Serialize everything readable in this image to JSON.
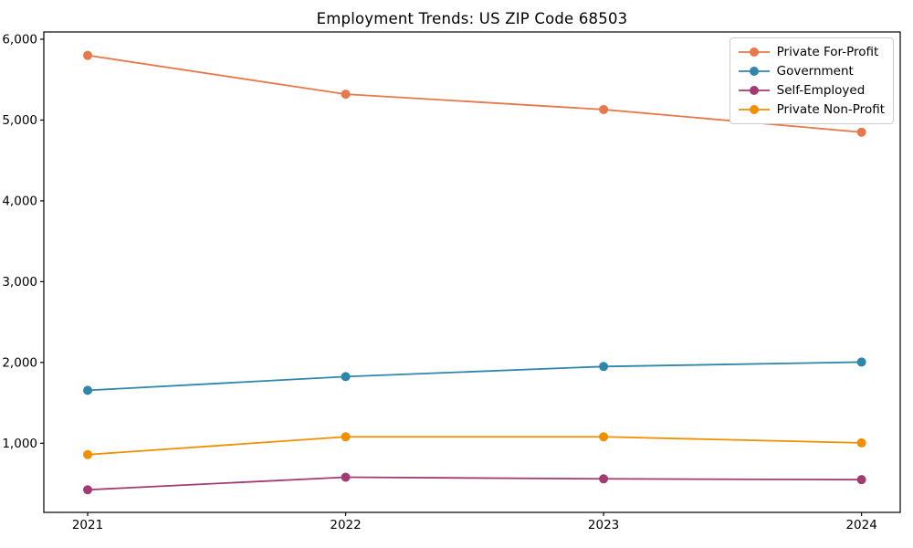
{
  "chart_data": {
    "type": "line",
    "title": "Employment Trends: US ZIP Code 68503",
    "x": [
      2021,
      2022,
      2023,
      2024
    ],
    "x_tick_labels": [
      "2021",
      "2022",
      "2023",
      "2024"
    ],
    "series": [
      {
        "name": "Private For-Profit",
        "color": "#E6784B",
        "values": [
          5800,
          5320,
          5130,
          4850
        ]
      },
      {
        "name": "Government",
        "color": "#2E86AB",
        "values": [
          1655,
          1825,
          1950,
          2005
        ]
      },
      {
        "name": "Self-Employed",
        "color": "#A23B72",
        "values": [
          425,
          580,
          560,
          550
        ]
      },
      {
        "name": "Private Non-Profit",
        "color": "#F18F01",
        "values": [
          860,
          1080,
          1080,
          1005
        ]
      }
    ],
    "yticks": [
      1000,
      2000,
      3000,
      4000,
      5000,
      6000
    ],
    "ytick_labels": [
      "1,000",
      "2,000",
      "3,000",
      "4,000",
      "5,000",
      "6,000"
    ],
    "xlim": [
      2020.83,
      2024.15
    ],
    "ylim": [
      145,
      6090
    ],
    "grid": false,
    "legend_position": "upper right",
    "marker": "circle",
    "background_color": "#ffffff",
    "axis_color": "#000000"
  }
}
